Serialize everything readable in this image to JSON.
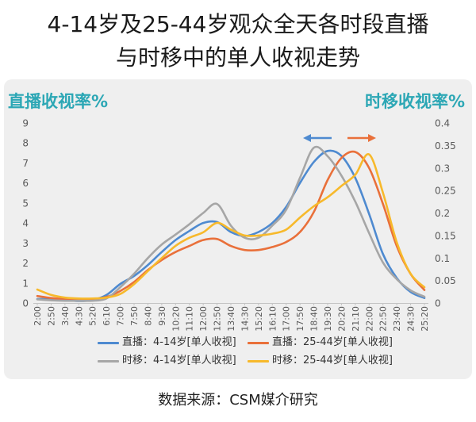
{
  "chart_data": {
    "type": "line",
    "title": [
      "4-14岁及25-44岁观众全天各时段直播",
      "与时移中的单人收视走势"
    ],
    "ylabel": "直播收视率%",
    "y2label": "时移收视率%",
    "axis_label_color": "#2CA7B5",
    "ylim": [
      0,
      9
    ],
    "y2lim": [
      0,
      0.4
    ],
    "yticks": [
      0,
      1,
      2,
      3,
      4,
      5,
      6,
      7,
      8,
      9
    ],
    "y2ticks": [
      0,
      0.05,
      0.1,
      0.15,
      0.2,
      0.25,
      0.3,
      0.35,
      0.4
    ],
    "x": [
      "2:00",
      "2:50",
      "3:40",
      "4:30",
      "5:20",
      "6:10",
      "7:00",
      "7:50",
      "8:40",
      "9:30",
      "10:20",
      "11:10",
      "12:00",
      "12:50",
      "13:40",
      "14:30",
      "15:20",
      "16:10",
      "17:00",
      "17:50",
      "18:40",
      "19:30",
      "20:20",
      "21:10",
      "22:00",
      "22:50",
      "23:40",
      "24:30",
      "25:20"
    ],
    "grid": false,
    "legend": "bottom",
    "series": [
      {
        "name": "直播：4-14岁[单人收视]",
        "axis": "left",
        "color": "#4E8AD0",
        "values": [
          0.2,
          0.2,
          0.15,
          0.1,
          0.15,
          0.4,
          0.95,
          1.35,
          1.9,
          2.55,
          3.15,
          3.6,
          4.0,
          4.05,
          3.55,
          3.35,
          3.55,
          4.0,
          4.8,
          6.0,
          7.05,
          7.6,
          7.35,
          6.25,
          4.45,
          2.45,
          1.25,
          0.55,
          0.25
        ]
      },
      {
        "name": "直播：25-44岁[单人收视]",
        "axis": "left",
        "color": "#E9703A",
        "values": [
          0.35,
          0.25,
          0.2,
          0.2,
          0.2,
          0.3,
          0.6,
          1.05,
          1.65,
          2.15,
          2.55,
          2.85,
          3.15,
          3.2,
          2.85,
          2.65,
          2.65,
          2.8,
          3.05,
          3.55,
          4.55,
          6.15,
          7.25,
          7.55,
          6.75,
          4.95,
          2.85,
          1.45,
          0.65
        ]
      },
      {
        "name": "时移：4-14岁[单人收视]",
        "axis": "right",
        "color": "#A6A6A6",
        "values": [
          0.008,
          0.006,
          0.005,
          0.005,
          0.005,
          0.01,
          0.035,
          0.065,
          0.1,
          0.13,
          0.152,
          0.175,
          0.2,
          0.22,
          0.172,
          0.145,
          0.145,
          0.172,
          0.207,
          0.278,
          0.345,
          0.326,
          0.283,
          0.225,
          0.155,
          0.09,
          0.053,
          0.028,
          0.014
        ]
      },
      {
        "name": "时移：25-44岁[单人收视]",
        "axis": "right",
        "color": "#F7B92B",
        "values": [
          0.03,
          0.018,
          0.012,
          0.01,
          0.01,
          0.012,
          0.02,
          0.042,
          0.071,
          0.1,
          0.127,
          0.145,
          0.157,
          0.178,
          0.163,
          0.15,
          0.15,
          0.154,
          0.163,
          0.19,
          0.215,
          0.235,
          0.26,
          0.285,
          0.33,
          0.245,
          0.135,
          0.065,
          0.035
        ]
      }
    ],
    "annotations": [
      {
        "type": "arrow",
        "direction": "left",
        "color": "#4E8AD0"
      },
      {
        "type": "arrow",
        "direction": "right",
        "color": "#E9703A"
      }
    ]
  },
  "source": "数据来源：CSM媒介研究"
}
